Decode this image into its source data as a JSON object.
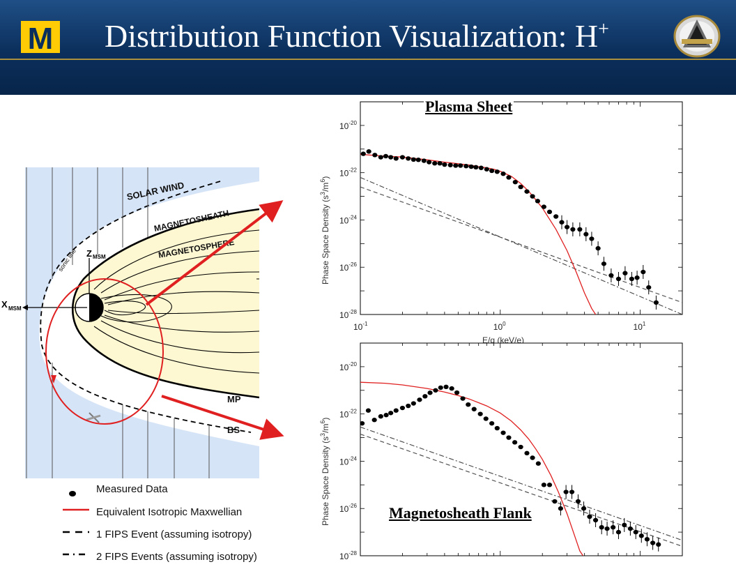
{
  "slide": {
    "title_text": "Distribution Function Visualization: H",
    "title_superscript": "+",
    "logo_letter": "M"
  },
  "diagram": {
    "x_axis_label": "X",
    "x_axis_sub": "MSM",
    "z_axis_label": "Z",
    "z_axis_sub": "MSM",
    "regions": [
      "SOLAR WIND",
      "MAGNETOSHEATH",
      "MAGNETOSPHERE"
    ],
    "sonic_line_label": "sonic line",
    "boundary_labels": [
      "MP",
      "BS"
    ]
  },
  "legend": [
    {
      "marker": "dot",
      "label": "Measured Data"
    },
    {
      "marker": "red-solid",
      "label": "Equivalent Isotropic Maxwellian"
    },
    {
      "marker": "dashed",
      "label": "1 FIPS Event (assuming isotropy)"
    },
    {
      "marker": "dash-dot",
      "label": "2 FIPS Events (assuming isotropy)"
    }
  ],
  "colors": {
    "header": "#0b2f5c",
    "maxwellian": "#e02020",
    "arrow": "#e02020",
    "diagram_sky": "#d6e4f7",
    "diagram_sheath": "#ffffff",
    "diagram_sphere": "#fdf7d2"
  },
  "chart_data": [
    {
      "type": "scatter",
      "title": "Plasma Sheet",
      "xlabel": "E/q (keV/e)",
      "ylabel_text": "Phase Space Density (s",
      "ylabel_unit": "3",
      "ylabel_tail": "/m",
      "ylabel_unit2": "6",
      "ylabel_close": ")",
      "xscale": "log",
      "yscale": "log",
      "xlim": [
        0.1,
        20
      ],
      "ylim": [
        1e-28,
        1e-19
      ],
      "x_ticks": [
        {
          "v": 0.1,
          "base": "10",
          "exp": "-1"
        },
        {
          "v": 1,
          "base": "10",
          "exp": "0"
        },
        {
          "v": 10,
          "base": "10",
          "exp": "1"
        }
      ],
      "y_ticks": [
        {
          "v": 1e-28,
          "base": "10",
          "exp": "-28"
        },
        {
          "v": 1e-26,
          "base": "10",
          "exp": "-26"
        },
        {
          "v": 1e-24,
          "base": "10",
          "exp": "-24"
        },
        {
          "v": 1e-22,
          "base": "10",
          "exp": "-22"
        },
        {
          "v": 1e-20,
          "base": "10",
          "exp": "-20"
        }
      ],
      "measured": [
        [
          0.105,
          6.3e-22
        ],
        [
          0.115,
          7.9e-22
        ],
        [
          0.127,
          5.6e-22
        ],
        [
          0.14,
          4.5e-22
        ],
        [
          0.152,
          5e-22
        ],
        [
          0.165,
          4.5e-22
        ],
        [
          0.18,
          4e-22
        ],
        [
          0.2,
          4.5e-22
        ],
        [
          0.22,
          4e-22
        ],
        [
          0.24,
          3.6e-22
        ],
        [
          0.26,
          3.5e-22
        ],
        [
          0.285,
          3.2e-22
        ],
        [
          0.31,
          2.8e-22
        ],
        [
          0.34,
          2.5e-22
        ],
        [
          0.37,
          2.5e-22
        ],
        [
          0.4,
          2.2e-22
        ],
        [
          0.44,
          2.1e-22
        ],
        [
          0.48,
          2e-22
        ],
        [
          0.52,
          2e-22
        ],
        [
          0.57,
          1.9e-22
        ],
        [
          0.62,
          1.8e-22
        ],
        [
          0.67,
          1.7e-22
        ],
        [
          0.73,
          1.6e-22
        ],
        [
          0.8,
          1.4e-22
        ],
        [
          0.87,
          1.2e-22
        ],
        [
          0.95,
          1.1e-22
        ],
        [
          1.05,
          9e-23
        ],
        [
          1.15,
          6.3e-23
        ],
        [
          1.28,
          4e-23
        ],
        [
          1.4,
          2.5e-23
        ],
        [
          1.55,
          1.6e-23
        ],
        [
          1.7,
          1e-23
        ],
        [
          1.85,
          6.3e-24
        ],
        [
          2.05,
          3.6e-24
        ],
        [
          2.25,
          2.2e-24
        ],
        [
          2.5,
          1.4e-24
        ],
        [
          2.75,
          8e-25
        ],
        [
          3.0,
          5e-25
        ],
        [
          3.3,
          4e-25
        ],
        [
          3.7,
          4e-25
        ],
        [
          4.1,
          2.5e-25
        ],
        [
          4.5,
          1.6e-25
        ],
        [
          5.0,
          6.3e-26
        ],
        [
          5.5,
          1.4e-26
        ],
        [
          6.2,
          4.5e-27
        ],
        [
          7.0,
          3.2e-27
        ],
        [
          7.8,
          5.6e-27
        ],
        [
          8.7,
          3.2e-27
        ],
        [
          9.5,
          3.6e-27
        ],
        [
          10.5,
          6.3e-27
        ],
        [
          11.5,
          1.4e-27
        ],
        [
          13.0,
          3.2e-28
        ]
      ],
      "maxwellian": [
        [
          0.1,
          6e-22
        ],
        [
          0.15,
          5e-22
        ],
        [
          0.2,
          4.6e-22
        ],
        [
          0.3,
          3.5e-22
        ],
        [
          0.4,
          2.8e-22
        ],
        [
          0.5,
          2.4e-22
        ],
        [
          0.6,
          2.1e-22
        ],
        [
          0.7,
          1.8e-22
        ],
        [
          0.8,
          1.6e-22
        ],
        [
          0.9,
          1.4e-22
        ],
        [
          1.0,
          1.15e-22
        ],
        [
          1.2,
          7e-23
        ],
        [
          1.4,
          3.5e-23
        ],
        [
          1.6,
          1.6e-23
        ],
        [
          1.8,
          7e-24
        ],
        [
          2.0,
          3.2e-24
        ],
        [
          2.5,
          4e-25
        ],
        [
          3.0,
          5e-26
        ],
        [
          3.5,
          6e-27
        ],
        [
          4.0,
          8e-28
        ],
        [
          4.5,
          1.8e-28
        ],
        [
          4.8,
          1e-28
        ]
      ],
      "one_fips": [
        [
          0.1,
          2.5e-23
        ],
        [
          20,
          3.2e-28
        ]
      ],
      "two_fips": [
        [
          0.1,
          6.3e-23
        ],
        [
          20,
          1e-28
        ]
      ]
    },
    {
      "type": "scatter",
      "title": "Magnetosheath Flank",
      "xlabel": "",
      "ylabel_text": "Phase Space Density (s",
      "ylabel_unit": "3",
      "ylabel_tail": "/m",
      "ylabel_unit2": "6",
      "ylabel_close": ")",
      "xscale": "log",
      "yscale": "log",
      "xlim": [
        0.1,
        20
      ],
      "ylim": [
        1e-28,
        1e-19
      ],
      "x_ticks": [],
      "y_ticks": [
        {
          "v": 1e-28,
          "base": "10",
          "exp": "-28"
        },
        {
          "v": 1e-26,
          "base": "10",
          "exp": "-26"
        },
        {
          "v": 1e-24,
          "base": "10",
          "exp": "-24"
        },
        {
          "v": 1e-22,
          "base": "10",
          "exp": "-22"
        },
        {
          "v": 1e-20,
          "base": "10",
          "exp": "-20"
        }
      ],
      "measured": [
        [
          0.103,
          4e-23
        ],
        [
          0.114,
          1.4e-22
        ],
        [
          0.126,
          5.6e-23
        ],
        [
          0.14,
          7.9e-23
        ],
        [
          0.153,
          9e-23
        ],
        [
          0.165,
          1.1e-22
        ],
        [
          0.18,
          1.4e-22
        ],
        [
          0.2,
          1.8e-22
        ],
        [
          0.22,
          2.2e-22
        ],
        [
          0.24,
          2.8e-22
        ],
        [
          0.265,
          4e-22
        ],
        [
          0.29,
          5.6e-22
        ],
        [
          0.315,
          7.9e-22
        ],
        [
          0.345,
          1e-21
        ],
        [
          0.375,
          1.3e-21
        ],
        [
          0.41,
          1.4e-21
        ],
        [
          0.45,
          1.2e-21
        ],
        [
          0.49,
          8e-22
        ],
        [
          0.54,
          4.5e-22
        ],
        [
          0.59,
          2.5e-22
        ],
        [
          0.65,
          1.6e-22
        ],
        [
          0.72,
          1e-22
        ],
        [
          0.79,
          6.3e-23
        ],
        [
          0.87,
          4e-23
        ],
        [
          0.95,
          2.5e-23
        ],
        [
          1.05,
          1.6e-23
        ],
        [
          1.15,
          1e-23
        ],
        [
          1.27,
          6.3e-24
        ],
        [
          1.4,
          4e-24
        ],
        [
          1.55,
          2.2e-24
        ],
        [
          1.7,
          1.4e-24
        ],
        [
          1.87,
          8e-25
        ],
        [
          2.05,
          1e-25
        ],
        [
          2.25,
          1e-25
        ],
        [
          2.45,
          2e-26
        ],
        [
          2.7,
          1e-26
        ],
        [
          2.95,
          5e-26
        ],
        [
          3.25,
          5e-26
        ],
        [
          3.6,
          2e-26
        ],
        [
          3.95,
          1e-26
        ],
        [
          4.35,
          4.5e-27
        ],
        [
          4.8,
          3.2e-27
        ],
        [
          5.3,
          1.6e-27
        ],
        [
          5.8,
          1.4e-27
        ],
        [
          6.4,
          1.6e-27
        ],
        [
          7.0,
          1e-27
        ],
        [
          7.7,
          2e-27
        ],
        [
          8.5,
          1.4e-27
        ],
        [
          9.3,
          1e-27
        ],
        [
          10.2,
          7e-28
        ],
        [
          11.2,
          5e-28
        ],
        [
          12.3,
          3.5e-28
        ],
        [
          13.5,
          3e-28
        ]
      ],
      "maxwellian": [
        [
          0.1,
          2.2e-21
        ],
        [
          0.15,
          2e-21
        ],
        [
          0.2,
          1.7e-21
        ],
        [
          0.3,
          1.2e-21
        ],
        [
          0.4,
          8.5e-22
        ],
        [
          0.5,
          6e-22
        ],
        [
          0.6,
          4.3e-22
        ],
        [
          0.7,
          3e-22
        ],
        [
          0.8,
          2.2e-22
        ],
        [
          1.0,
          1.1e-22
        ],
        [
          1.2,
          5e-23
        ],
        [
          1.4,
          2.1e-23
        ],
        [
          1.6,
          8.5e-24
        ],
        [
          1.8,
          3.2e-24
        ],
        [
          2.0,
          1.2e-24
        ],
        [
          2.3,
          2.5e-25
        ],
        [
          2.6,
          5e-26
        ],
        [
          3.0,
          6e-27
        ],
        [
          3.4,
          7e-28
        ],
        [
          3.7,
          1.6e-28
        ],
        [
          3.9,
          1e-28
        ]
      ],
      "one_fips": [
        [
          0.1,
          1.4e-23
        ],
        [
          20,
          2.5e-28
        ]
      ],
      "two_fips": [
        [
          0.1,
          2.8e-23
        ],
        [
          20,
          4.5e-28
        ]
      ]
    }
  ]
}
